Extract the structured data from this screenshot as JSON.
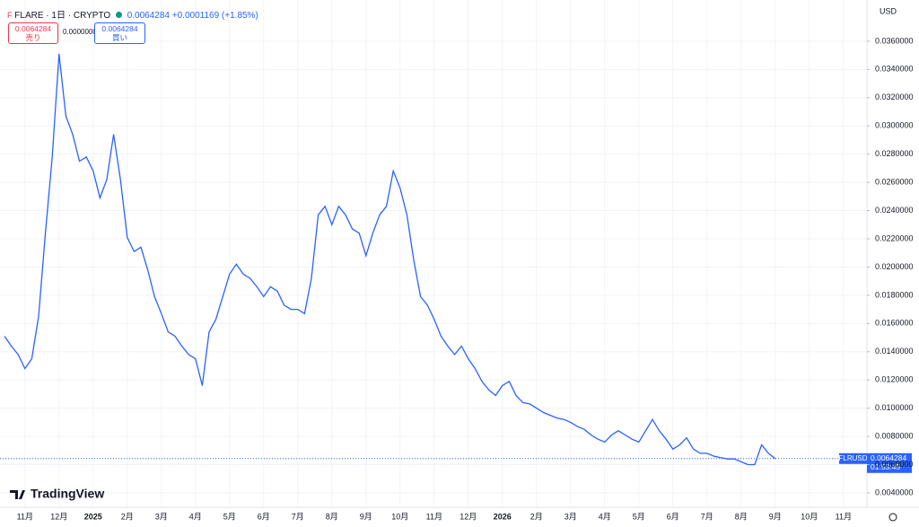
{
  "chart_data": {
    "type": "line",
    "categories": [
      null,
      null,
      null,
      "11月",
      null,
      null,
      null,
      null,
      "12月",
      null,
      null,
      null,
      null,
      "2025",
      null,
      null,
      null,
      null,
      "2月",
      null,
      null,
      null,
      null,
      "3月",
      null,
      null,
      null,
      null,
      "4月",
      null,
      null,
      null,
      null,
      "5月",
      null,
      null,
      null,
      null,
      "6月",
      null,
      null,
      null,
      null,
      "7月",
      null,
      null,
      null,
      null,
      "8月",
      null,
      null,
      null,
      null,
      "9月",
      null,
      null,
      null,
      null,
      "10月",
      null,
      null,
      null,
      null,
      "11月",
      null,
      null,
      null,
      null,
      "12月",
      null,
      null,
      null,
      null,
      "2026",
      null,
      null,
      null,
      null,
      "2月",
      null,
      null,
      null,
      null,
      "3月",
      null,
      null,
      null,
      null,
      "4月",
      null,
      null,
      null,
      null,
      "5月",
      null,
      null,
      null,
      null,
      "6月",
      null,
      null,
      null,
      null,
      "7月",
      null,
      null,
      null,
      null,
      "8月",
      null,
      null,
      null,
      null,
      "9月",
      null,
      null,
      null,
      null,
      "10月",
      null,
      null,
      null,
      null,
      "11月"
    ],
    "series": [
      {
        "name": "FLRUSD",
        "color": "#2962ff",
        "values": [
          0.0151,
          0.0144,
          0.0138,
          0.0128,
          0.0135,
          0.0165,
          0.0224,
          0.0278,
          0.0351,
          0.0307,
          0.0294,
          0.0275,
          0.0278,
          0.0268,
          0.0249,
          0.0262,
          0.0294,
          0.0262,
          0.0221,
          0.0211,
          0.0214,
          0.0198,
          0.0179,
          0.0167,
          0.0154,
          0.0151,
          0.0144,
          0.0138,
          0.0135,
          0.0116,
          0.0154,
          0.0163,
          0.0179,
          0.0195,
          0.0202,
          0.0195,
          0.0192,
          0.0186,
          0.0179,
          0.0186,
          0.0183,
          0.0173,
          0.017,
          0.017,
          0.0167,
          0.0192,
          0.0237,
          0.0243,
          0.023,
          0.0243,
          0.0237,
          0.0227,
          0.0224,
          0.0208,
          0.0224,
          0.0237,
          0.0243,
          0.0268,
          0.0256,
          0.0237,
          0.0205,
          0.0179,
          0.0173,
          0.0163,
          0.0151,
          0.0144,
          0.0138,
          0.0144,
          0.0135,
          0.0128,
          0.0119,
          0.0113,
          0.0109,
          0.0116,
          0.0119,
          0.0109,
          0.0104,
          0.0103,
          0.01,
          0.0097,
          0.0095,
          0.0093,
          0.0092,
          0.009,
          0.0087,
          0.0085,
          0.0081,
          0.0078,
          0.0076,
          0.0081,
          0.0084,
          0.0081,
          0.0078,
          0.0076,
          0.0084,
          0.0092,
          0.0084,
          0.0078,
          0.0071,
          0.0074,
          0.0079,
          0.0071,
          0.0068,
          0.0068,
          0.0066,
          0.0065,
          0.0064,
          0.0064,
          0.0062,
          0.006,
          0.006,
          0.0074,
          0.0068,
          0.0064284,
          null,
          null,
          null,
          null,
          null,
          null,
          null,
          null,
          null,
          null
        ]
      }
    ],
    "ylim": [
      0.00298,
      0.03892
    ],
    "yticks": [
      {
        "value": 0.004,
        "label": "0.0040000"
      },
      {
        "value": 0.006,
        "label": "0.0060000"
      },
      {
        "value": 0.008,
        "label": "0.0080000"
      },
      {
        "value": 0.01,
        "label": "0.0100000"
      },
      {
        "value": 0.012,
        "label": "0.0120000"
      },
      {
        "value": 0.014,
        "label": "0.0140000"
      },
      {
        "value": 0.016,
        "label": "0.0160000"
      },
      {
        "value": 0.018,
        "label": "0.0180000"
      },
      {
        "value": 0.02,
        "label": "0.0200000"
      },
      {
        "value": 0.022,
        "label": "0.0220000"
      },
      {
        "value": 0.024,
        "label": "0.0240000"
      },
      {
        "value": 0.026,
        "label": "0.0260000"
      },
      {
        "value": 0.028,
        "label": "0.0280000"
      },
      {
        "value": 0.03,
        "label": "0.0300000"
      },
      {
        "value": 0.032,
        "label": "0.0320000"
      },
      {
        "value": 0.034,
        "label": "0.0340000"
      },
      {
        "value": 0.036,
        "label": "0.0360000"
      }
    ],
    "grid": true
  },
  "toolbar": {
    "symbol": "FLARE · 1日 · CRYPTO",
    "price": "0.0064284",
    "change": "+0.0001169 (+1.85%)",
    "sell_price": "0.0064284",
    "sell_label": "売り",
    "spread": "0.0000000",
    "buy_price": "0.0064284",
    "buy_label": "買い",
    "currency": "USD",
    "ticker": "FLRUSD",
    "countdown": "01:53:45",
    "brand": "TradingView"
  }
}
